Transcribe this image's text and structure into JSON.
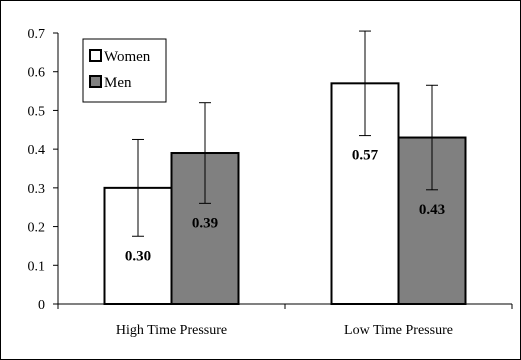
{
  "chart_data": {
    "type": "bar",
    "categories": [
      "High Time Pressure",
      "Low Time Pressure"
    ],
    "series": [
      {
        "name": "Women",
        "values": [
          0.3,
          0.57
        ],
        "error": [
          0.125,
          0.135
        ],
        "data_labels": [
          "0.30",
          "0.57"
        ],
        "color": "#ffffff"
      },
      {
        "name": "Men",
        "values": [
          0.39,
          0.43
        ],
        "error": [
          0.13,
          0.135
        ],
        "data_labels": [
          "0.39",
          "0.43"
        ],
        "color": "#808080"
      }
    ],
    "ylim": [
      0,
      0.7
    ],
    "yticks": [
      "0",
      "0.1",
      "0.2",
      "0.3",
      "0.4",
      "0.5",
      "0.6",
      "0.7"
    ],
    "title": "",
    "xlabel": "",
    "ylabel": "",
    "grid": false,
    "legend_position": "top-left"
  }
}
